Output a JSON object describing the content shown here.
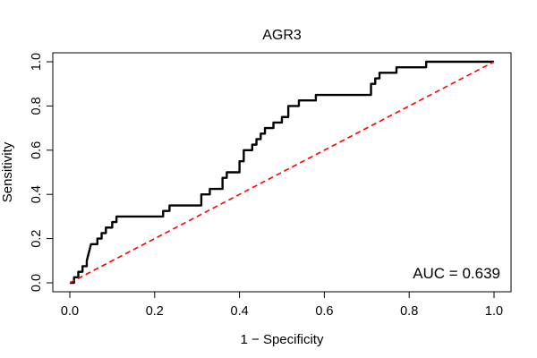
{
  "chart_data": {
    "type": "line",
    "title": "AGR3",
    "xlabel": "1 − Specificity",
    "ylabel": "Sensitivity",
    "xlim": [
      0,
      1
    ],
    "ylim": [
      0,
      1
    ],
    "xticks": [
      "0.0",
      "0.2",
      "0.4",
      "0.6",
      "0.8",
      "1.0"
    ],
    "yticks": [
      "0.0",
      "0.2",
      "0.4",
      "0.6",
      "0.8",
      "1.0"
    ],
    "grid": false,
    "annotation": "AUC = 0.639",
    "annotation_position": "bottom-right",
    "series": [
      {
        "color": "#000000",
        "style": "solid",
        "x": [
          0.0,
          0.01,
          0.01,
          0.02,
          0.02,
          0.03,
          0.03,
          0.04,
          0.04,
          0.05,
          0.065,
          0.065,
          0.075,
          0.075,
          0.085,
          0.085,
          0.1,
          0.1,
          0.11,
          0.11,
          0.22,
          0.22,
          0.235,
          0.235,
          0.31,
          0.31,
          0.33,
          0.33,
          0.36,
          0.36,
          0.37,
          0.37,
          0.4,
          0.4,
          0.41,
          0.41,
          0.43,
          0.43,
          0.44,
          0.44,
          0.45,
          0.45,
          0.46,
          0.46,
          0.48,
          0.48,
          0.5,
          0.5,
          0.515,
          0.515,
          0.54,
          0.54,
          0.56,
          0.56,
          0.58,
          0.58,
          0.6,
          0.6,
          0.71,
          0.71,
          0.72,
          0.72,
          0.73,
          0.73,
          0.77,
          0.77,
          0.84,
          0.84,
          1.0
        ],
        "y": [
          0.0,
          0.0,
          0.025,
          0.025,
          0.05,
          0.05,
          0.075,
          0.075,
          0.1,
          0.175,
          0.175,
          0.2,
          0.2,
          0.225,
          0.225,
          0.25,
          0.25,
          0.275,
          0.275,
          0.3,
          0.3,
          0.325,
          0.325,
          0.35,
          0.35,
          0.4,
          0.4,
          0.425,
          0.425,
          0.475,
          0.475,
          0.5,
          0.5,
          0.55,
          0.55,
          0.6,
          0.6,
          0.625,
          0.625,
          0.65,
          0.65,
          0.675,
          0.675,
          0.7,
          0.7,
          0.725,
          0.725,
          0.75,
          0.75,
          0.8,
          0.8,
          0.825,
          0.825,
          0.825,
          0.825,
          0.85,
          0.85,
          0.85,
          0.85,
          0.9,
          0.9,
          0.925,
          0.925,
          0.95,
          0.95,
          0.975,
          0.975,
          1.0,
          1.0
        ]
      },
      {
        "color": "#ff0000",
        "style": "dashed",
        "x": [
          0,
          1
        ],
        "y": [
          0,
          1
        ]
      }
    ]
  }
}
